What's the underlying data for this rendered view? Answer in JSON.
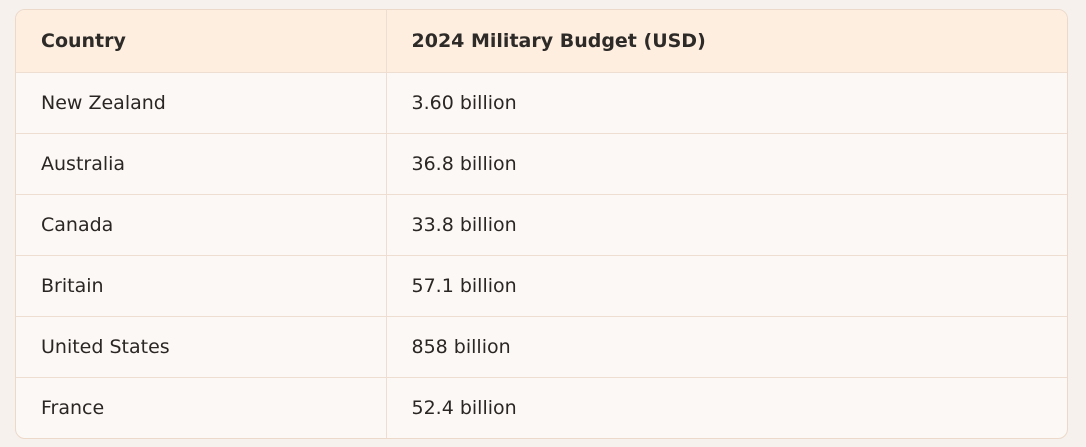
{
  "table": {
    "headers": [
      "Country",
      "2024 Military Budget (USD)"
    ],
    "rows": [
      [
        "New Zealand",
        "3.60 billion"
      ],
      [
        "Australia",
        "36.8 billion"
      ],
      [
        "Canada",
        "33.8 billion"
      ],
      [
        "Britain",
        "57.1 billion"
      ],
      [
        "United States",
        "858 billion"
      ],
      [
        "France",
        "52.4 billion"
      ]
    ]
  }
}
